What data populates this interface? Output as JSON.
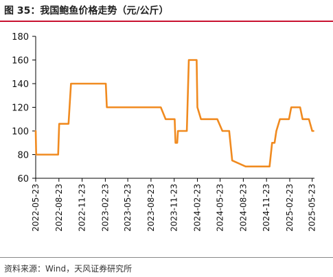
{
  "figure_title": "图 35：我国鲍鱼价格走势（元/公斤）",
  "source": "资料来源：Wind，天风证券研究所",
  "colors": {
    "line": "#F08A1F",
    "title_rule": "#c8102e",
    "axis": "#000000"
  },
  "chart_data": {
    "type": "line",
    "title": "",
    "xlabel": "",
    "ylabel": "",
    "ylim": [
      60,
      180
    ],
    "yticks": [
      60,
      80,
      100,
      120,
      140,
      160,
      180
    ],
    "xlim": [
      "2022-05-23",
      "2025-06-01"
    ],
    "xticks": [
      "2022-05-23",
      "2022-08-23",
      "2022-11-23",
      "2023-02-23",
      "2023-05-23",
      "2023-08-23",
      "2023-11-23",
      "2024-02-23",
      "2024-05-23",
      "2024-08-23",
      "2024-11-23",
      "2025-02-23",
      "2025-05-23"
    ],
    "grid": false,
    "legend": "none",
    "series": [
      {
        "x": [
          "2022-05-23",
          "2022-05-25",
          "2022-06-15",
          "2022-07-20",
          "2022-08-20",
          "2022-08-24",
          "2022-09-25",
          "2022-09-30",
          "2022-10-10",
          "2022-12-15",
          "2023-02-25",
          "2023-03-01",
          "2023-04-15",
          "2023-06-10",
          "2023-07-20",
          "2023-08-20",
          "2023-09-15",
          "2023-10-01",
          "2023-10-20",
          "2023-11-15",
          "2023-11-25",
          "2023-11-28",
          "2023-12-05",
          "2023-12-08",
          "2024-01-05",
          "2024-01-12",
          "2024-01-20",
          "2024-02-05",
          "2024-02-20",
          "2024-02-23",
          "2024-03-08",
          "2024-04-10",
          "2024-05-01",
          "2024-05-12",
          "2024-06-01",
          "2024-06-10",
          "2024-06-28",
          "2024-07-10",
          "2024-09-01",
          "2024-11-01",
          "2024-11-28",
          "2024-12-05",
          "2024-12-15",
          "2024-12-25",
          "2025-01-01",
          "2025-01-15",
          "2025-02-10",
          "2025-02-20",
          "2025-03-01",
          "2025-03-10",
          "2025-04-05",
          "2025-04-15",
          "2025-05-01",
          "2025-05-10",
          "2025-05-23",
          "2025-05-28"
        ],
        "y": [
          100,
          80,
          80,
          80,
          80,
          106,
          106,
          106,
          140,
          140,
          140,
          120,
          120,
          120,
          120,
          120,
          120,
          120,
          110,
          110,
          110,
          90,
          90,
          100,
          100,
          100,
          160,
          160,
          160,
          120,
          110,
          110,
          110,
          110,
          100,
          100,
          100,
          75,
          70,
          70,
          70,
          70,
          90,
          90,
          100,
          110,
          110,
          110,
          120,
          120,
          120,
          110,
          110,
          110,
          100,
          100
        ]
      }
    ]
  }
}
